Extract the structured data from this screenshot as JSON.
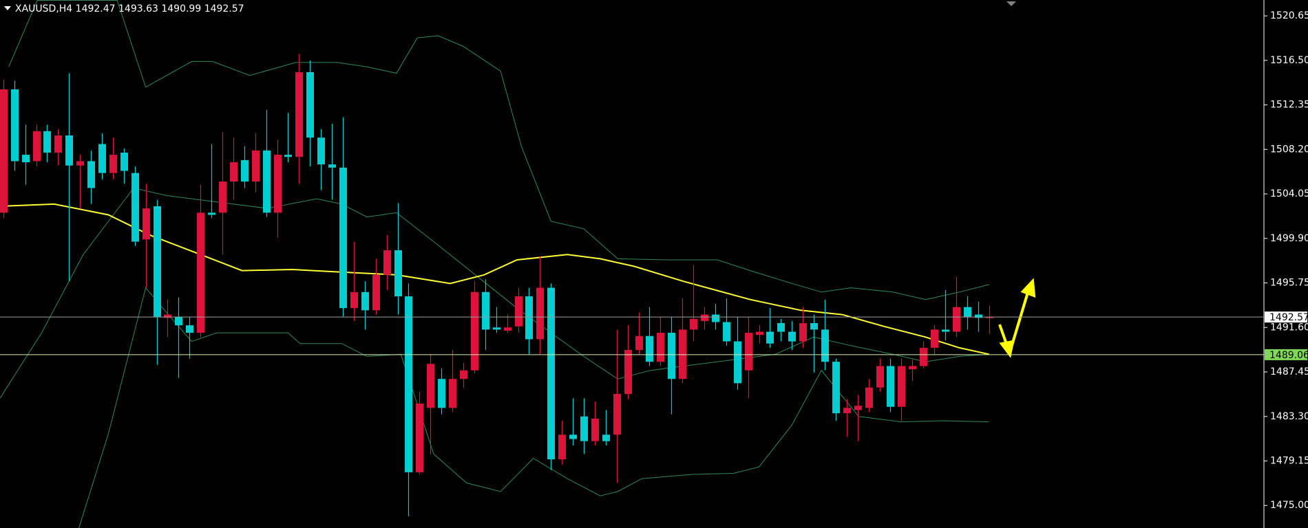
{
  "chart_data": {
    "type": "candlestick",
    "title": "XAUUSD,H4 1492.47 1493.63 1490.99 1492.57",
    "up_color": "#dc143c",
    "down_color": "#00ced1",
    "xlim": [
      -0.3,
      115.1
    ],
    "ylim": [
      1472.9,
      1522.13
    ],
    "yticks": [
      1520.65,
      {
        "value": 1516.5,
        "label": "1516.50"
      },
      1512.35,
      {
        "value": 1508.2,
        "label": "1508.20"
      },
      1504.05,
      {
        "value": 1499.9,
        "label": "1499.90"
      },
      1495.75,
      {
        "value": 1491.6,
        "label": "1491.60"
      },
      1487.45,
      {
        "value": 1483.3,
        "label": "1483.30"
      },
      1479.15,
      {
        "value": 1475,
        "label": "1475.00"
      }
    ],
    "open": [
      1502.3,
      1513.8,
      1507.7,
      1507.1,
      1509.9,
      1507.9,
      1509.5,
      1506.7,
      1507.1,
      1508.7,
      1506.0,
      1507.9,
      1506.0,
      1499.8,
      1502.9,
      1492.5,
      1492.6,
      1491.8,
      1491.1,
      1502.3,
      1502.3,
      1505.2,
      1507.2,
      1505.2,
      1508.1,
      1502.3,
      1507.7,
      1507.5,
      1515.4,
      1509.3,
      1506.8,
      1506.5,
      1493.4,
      1494.9,
      1493.2,
      1496.5,
      1498.8,
      1494.5,
      1478.1,
      1484.1,
      1486.8,
      1484.1,
      1486.8,
      1487.6,
      1494.9,
      1491.6,
      1491.3,
      1491.7,
      1494.5,
      1490.5,
      1495.3,
      1479.3,
      1481.6,
      1483.3,
      1481.0,
      1481.6,
      1481.6,
      1485.4,
      1489.5,
      1490.8,
      1488.4,
      1491.1,
      1486.8,
      1491.4,
      1492.2,
      1492.8,
      1492.1,
      1490.3,
      1487.6,
      1490.9,
      1491.2,
      1492.0,
      1491.2,
      1490.3,
      1492.0,
      1491.4,
      1488.4,
      1483.6,
      1483.9,
      1484.1,
      1486.0,
      1488.0,
      1484.2,
      1487.7,
      1488.0,
      1489.7,
      1491.4,
      1491.2,
      1493.5,
      1492.8,
      1492.47
    ],
    "high": [
      1514.7,
      1514.6,
      1510.5,
      1510.5,
      1510.5,
      1510.1,
      1515.3,
      1507.7,
      1508.1,
      1509.7,
      1509.3,
      1508.3,
      1506.6,
      1505.0,
      1503.5,
      1494.2,
      1494.4,
      1492.6,
      1504.9,
      1508.7,
      1509.8,
      1509.3,
      1508.5,
      1509.7,
      1511.9,
      1509.1,
      1511.6,
      1517.1,
      1516.5,
      1510.1,
      1510.6,
      1511.2,
      1499.6,
      1495.9,
      1498.0,
      1500.2,
      1503.2,
      1495.7,
      1485.6,
      1489.1,
      1487.8,
      1489.5,
      1488.3,
      1495.9,
      1496.1,
      1493.5,
      1492.8,
      1495.3,
      1495.3,
      1498.2,
      1495.7,
      1482.9,
      1485.0,
      1485.0,
      1484.7,
      1483.9,
      1491.4,
      1491.8,
      1493.0,
      1493.5,
      1492.6,
      1492.6,
      1494.3,
      1497.4,
      1493.5,
      1493.8,
      1494.3,
      1492.6,
      1492.6,
      1491.8,
      1493.4,
      1492.4,
      1492.2,
      1493.5,
      1492.8,
      1494.2,
      1488.7,
      1484.9,
      1485.3,
      1486.8,
      1488.7,
      1488.7,
      1488.7,
      1488.6,
      1490.3,
      1491.8,
      1495.1,
      1496.3,
      1494.5,
      1494.0,
      1493.63
    ],
    "low": [
      1501.8,
      1506.2,
      1504.9,
      1506.6,
      1507.0,
      1506.7,
      1495.9,
      1502.7,
      1503.1,
      1505.4,
      1505.4,
      1505.0,
      1499.2,
      1495.3,
      1488.1,
      1490.7,
      1486.9,
      1488.7,
      1490.7,
      1501.8,
      1498.4,
      1503.5,
      1504.6,
      1504.2,
      1501.9,
      1500.0,
      1507.0,
      1505.0,
      1506.6,
      1504.4,
      1503.5,
      1492.6,
      1492.2,
      1491.4,
      1492.8,
      1495.1,
      1492.8,
      1474.0,
      1477.9,
      1479.8,
      1483.5,
      1483.7,
      1486.0,
      1487.3,
      1489.5,
      1491.1,
      1491.1,
      1491.1,
      1489.1,
      1489.1,
      1478.3,
      1478.8,
      1480.6,
      1479.8,
      1480.6,
      1480.6,
      1477.1,
      1484.9,
      1489.1,
      1488.0,
      1488.0,
      1483.5,
      1486.4,
      1490.3,
      1491.4,
      1491.4,
      1489.9,
      1485.8,
      1485.0,
      1490.1,
      1489.7,
      1490.3,
      1489.5,
      1489.7,
      1487.4,
      1487.6,
      1482.9,
      1481.4,
      1481.0,
      1483.7,
      1485.6,
      1483.7,
      1482.9,
      1486.6,
      1487.8,
      1489.1,
      1490.4,
      1490.7,
      1491.4,
      1491.2,
      1490.99
    ],
    "close": [
      1513.8,
      1507.1,
      1507.0,
      1509.9,
      1507.9,
      1509.5,
      1506.7,
      1507.1,
      1504.6,
      1506.0,
      1507.7,
      1506.2,
      1499.6,
      1502.7,
      1492.6,
      1492.8,
      1491.8,
      1491.1,
      1502.3,
      1502.1,
      1505.2,
      1507.0,
      1505.2,
      1508.1,
      1502.3,
      1507.7,
      1507.5,
      1515.4,
      1509.3,
      1506.8,
      1506.5,
      1493.4,
      1494.9,
      1493.2,
      1496.5,
      1498.8,
      1494.5,
      1478.1,
      1484.5,
      1488.2,
      1484.1,
      1486.8,
      1487.6,
      1494.9,
      1491.4,
      1491.4,
      1491.6,
      1494.5,
      1490.5,
      1495.3,
      1479.3,
      1481.6,
      1481.2,
      1481.0,
      1483.1,
      1481.0,
      1485.4,
      1489.5,
      1490.8,
      1488.4,
      1491.1,
      1486.8,
      1491.4,
      1492.4,
      1492.8,
      1492.1,
      1490.3,
      1486.4,
      1491.1,
      1491.2,
      1490.1,
      1491.2,
      1490.3,
      1492.0,
      1491.4,
      1488.4,
      1483.6,
      1484.1,
      1484.3,
      1486.0,
      1488.0,
      1484.2,
      1488.0,
      1488.0,
      1489.7,
      1491.4,
      1491.2,
      1493.5,
      1492.6,
      1492.5,
      1492.57
    ],
    "indicators": [
      {
        "color": "#2e8b57",
        "x": [
          0.5,
          3.1,
          10.4,
          13.0,
          17.2,
          19.1,
          22.5,
          26.7,
          30.5,
          33.2,
          35.9,
          37.8,
          39.7,
          42.0,
          45.4,
          47.3,
          50.0,
          53.0,
          56.1,
          60.6,
          65.2,
          68.2,
          72.0,
          74.7,
          77.4,
          81.2,
          84.2,
          87.3,
          90.0
        ],
        "values": [
          1515.9,
          1522.1,
          1522.1,
          1514.0,
          1516.4,
          1516.4,
          1515.1,
          1516.3,
          1516.3,
          1515.9,
          1515.3,
          1518.6,
          1518.8,
          1517.8,
          1515.5,
          1508.5,
          1501.5,
          1500.8,
          1498.0,
          1497.9,
          1497.9,
          1496.9,
          1495.7,
          1494.9,
          1495.3,
          1494.9,
          1494.2,
          1494.9,
          1495.6
        ]
      },
      {
        "color": "#2e8b57",
        "x": [
          -0.3,
          3.5,
          7.3,
          11.9,
          14.9,
          19.5,
          24.1,
          28.6,
          30.9,
          33.2,
          35.9,
          39.3,
          43.1,
          46.9,
          50.0,
          53.0,
          56.1,
          59.1,
          62.9,
          66.7,
          70.5,
          74.0,
          77.4,
          81.2,
          84.2,
          87.3,
          90.0
        ],
        "values": [
          1485.0,
          1491.1,
          1498.4,
          1504.6,
          1503.9,
          1503.3,
          1502.7,
          1503.6,
          1503.1,
          1501.9,
          1502.3,
          1499.6,
          1496.5,
          1493.4,
          1491.1,
          1488.9,
          1486.8,
          1487.6,
          1488.1,
          1488.6,
          1489.1,
          1490.7,
          1489.9,
          1489.1,
          1488.4,
          1488.9,
          1489.1
        ]
      },
      {
        "color": "#2e8b57",
        "x": [
          6.9,
          9.6,
          13.0,
          14.9,
          17.2,
          19.5,
          22.5,
          26.0,
          27.1,
          30.9,
          33.2,
          36.3,
          39.3,
          42.3,
          45.4,
          48.4,
          51.5,
          54.5,
          56.1,
          58.3,
          62.9,
          66.7,
          69.0,
          72.0,
          74.7,
          78.1,
          82.0,
          85.8,
          90.0
        ],
        "values": [
          1472.9,
          1481.7,
          1495.3,
          1493.0,
          1490.3,
          1491.1,
          1491.1,
          1491.1,
          1490.1,
          1490.1,
          1488.9,
          1489.1,
          1479.8,
          1477.1,
          1476.3,
          1479.4,
          1477.5,
          1475.9,
          1476.3,
          1477.5,
          1477.9,
          1478.0,
          1478.6,
          1482.5,
          1487.6,
          1483.3,
          1482.8,
          1482.9,
          1482.8
        ]
      },
      {
        "color": "#ffff33",
        "x": [
          -0.3,
          4.65,
          9.6,
          13.4,
          18.0,
          21.8,
          26.4,
          30.2,
          35.9,
          40.8,
          43.9,
          46.9,
          51.5,
          54.5,
          57.6,
          62.1,
          68.2,
          72.8,
          76.6,
          80.4,
          84.2,
          87.3,
          90.0
        ],
        "values": [
          1502.9,
          1503.1,
          1502.1,
          1500.2,
          1498.4,
          1496.9,
          1497.0,
          1496.8,
          1496.5,
          1495.7,
          1496.5,
          1497.9,
          1498.4,
          1498.0,
          1497.3,
          1495.9,
          1494.2,
          1493.2,
          1492.8,
          1491.7,
          1490.7,
          1489.7,
          1489.1
        ]
      }
    ],
    "price_lines": [
      {
        "value": 1492.57,
        "color": "#a0a0a0",
        "label_bg": "#ffffff"
      },
      {
        "value": 1489.06,
        "color": "#d8f0b0",
        "label_bg": "#7ed957"
      }
    ]
  }
}
